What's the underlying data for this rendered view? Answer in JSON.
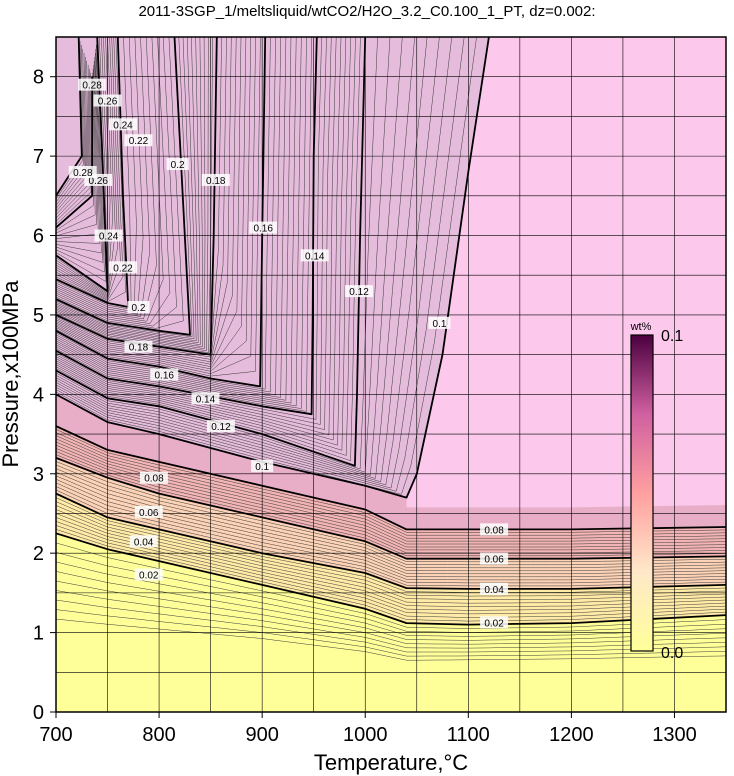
{
  "chart_data": {
    "type": "heatmap",
    "title": "2011-3SGP_1/meltsliquid/wtCO2/H2O_3.2_C0.100_1_PT, dz=0.002:",
    "xlabel": "Temperature,°C",
    "ylabel": "Pressure,x100MPa",
    "xlim": [
      700,
      1350
    ],
    "ylim": [
      0,
      8.5
    ],
    "x_ticks": [
      700,
      800,
      900,
      1000,
      1100,
      1200,
      1300
    ],
    "y_ticks": [
      0,
      1,
      2,
      3,
      4,
      5,
      6,
      7,
      8
    ],
    "grid_x": [
      700,
      750,
      800,
      850,
      900,
      950,
      1000,
      1050,
      1100,
      1150,
      1200,
      1250,
      1300,
      1350
    ],
    "grid_y": [
      0,
      0.5,
      1,
      1.5,
      2,
      2.5,
      3,
      3.5,
      4,
      4.5,
      5,
      5.5,
      6,
      6.5,
      7,
      7.5,
      8,
      8.5
    ],
    "contour_interval": 0.002,
    "major_contours": [
      {
        "level": 0.02,
        "points": [
          [
            700,
            2.25
          ],
          [
            750,
            2.05
          ],
          [
            800,
            1.9
          ],
          [
            900,
            1.6
          ],
          [
            1000,
            1.3
          ],
          [
            1040,
            1.12
          ],
          [
            1100,
            1.1
          ],
          [
            1200,
            1.12
          ],
          [
            1350,
            1.22
          ]
        ]
      },
      {
        "level": 0.04,
        "points": [
          [
            700,
            2.75
          ],
          [
            750,
            2.45
          ],
          [
            800,
            2.3
          ],
          [
            900,
            2.0
          ],
          [
            1000,
            1.75
          ],
          [
            1040,
            1.56
          ],
          [
            1100,
            1.55
          ],
          [
            1200,
            1.55
          ],
          [
            1350,
            1.6
          ]
        ]
      },
      {
        "level": 0.06,
        "points": [
          [
            700,
            3.2
          ],
          [
            750,
            2.95
          ],
          [
            800,
            2.75
          ],
          [
            900,
            2.45
          ],
          [
            1000,
            2.15
          ],
          [
            1040,
            1.93
          ],
          [
            1100,
            1.93
          ],
          [
            1200,
            1.93
          ],
          [
            1350,
            1.96
          ]
        ]
      },
      {
        "level": 0.08,
        "points": [
          [
            700,
            3.6
          ],
          [
            750,
            3.3
          ],
          [
            800,
            3.15
          ],
          [
            900,
            2.85
          ],
          [
            1000,
            2.55
          ],
          [
            1040,
            2.3
          ],
          [
            1100,
            2.3
          ],
          [
            1200,
            2.3
          ],
          [
            1350,
            2.33
          ]
        ]
      },
      {
        "level": 0.1,
        "points": [
          [
            700,
            4.0
          ],
          [
            750,
            3.65
          ],
          [
            800,
            3.5
          ],
          [
            900,
            3.15
          ],
          [
            1000,
            2.85
          ],
          [
            1040,
            2.7
          ],
          [
            1050,
            3.0
          ],
          [
            1075,
            4.5
          ],
          [
            1100,
            6.8
          ],
          [
            1120,
            8.5
          ]
        ]
      },
      {
        "level": 0.12,
        "points": [
          [
            700,
            4.3
          ],
          [
            750,
            3.95
          ],
          [
            800,
            3.85
          ],
          [
            900,
            3.5
          ],
          [
            990,
            3.1
          ],
          [
            992,
            4.0
          ],
          [
            995,
            6.0
          ],
          [
            1000,
            8.5
          ]
        ]
      },
      {
        "level": 0.14,
        "points": [
          [
            700,
            4.55
          ],
          [
            750,
            4.2
          ],
          [
            800,
            4.1
          ],
          [
            900,
            3.85
          ],
          [
            948,
            3.75
          ],
          [
            949,
            5.0
          ],
          [
            950,
            7.0
          ],
          [
            953,
            8.5
          ]
        ]
      },
      {
        "level": 0.16,
        "points": [
          [
            700,
            4.8
          ],
          [
            750,
            4.45
          ],
          [
            800,
            4.35
          ],
          [
            850,
            4.2
          ],
          [
            898,
            4.1
          ],
          [
            900,
            6.0
          ],
          [
            903,
            8.5
          ]
        ]
      },
      {
        "level": 0.18,
        "points": [
          [
            700,
            5.0
          ],
          [
            750,
            4.7
          ],
          [
            800,
            4.6
          ],
          [
            850,
            4.5
          ],
          [
            853,
            6.0
          ],
          [
            856,
            8.5
          ]
        ]
      },
      {
        "level": 0.2,
        "points": [
          [
            700,
            5.2
          ],
          [
            750,
            4.9
          ],
          [
            800,
            4.8
          ],
          [
            830,
            4.75
          ],
          [
            825,
            6.0
          ],
          [
            815,
            8.5
          ]
        ]
      },
      {
        "level": 0.22,
        "points": [
          [
            700,
            5.45
          ],
          [
            750,
            5.15
          ],
          [
            770,
            5.1
          ],
          [
            765,
            6.5
          ],
          [
            760,
            8.5
          ]
        ]
      },
      {
        "level": 0.24,
        "points": [
          [
            700,
            5.75
          ],
          [
            750,
            5.3
          ],
          [
            745,
            7.0
          ],
          [
            740,
            8.5
          ]
        ]
      },
      {
        "level": 0.26,
        "points": [
          [
            700,
            6.1
          ],
          [
            735,
            6.5
          ],
          [
            735,
            8.0
          ]
        ]
      },
      {
        "level": 0.28,
        "points": [
          [
            700,
            6.5
          ],
          [
            725,
            7.0
          ],
          [
            722,
            8.5
          ]
        ]
      }
    ],
    "contour_labels": [
      {
        "text": "0.02",
        "at": [
          790,
          1.73
        ]
      },
      {
        "text": "0.02",
        "at": [
          1125,
          1.13
        ]
      },
      {
        "text": "0.04",
        "at": [
          785,
          2.15
        ]
      },
      {
        "text": "0.04",
        "at": [
          1125,
          1.55
        ]
      },
      {
        "text": "0.06",
        "at": [
          790,
          2.52
        ]
      },
      {
        "text": "0.06",
        "at": [
          1125,
          1.93
        ]
      },
      {
        "text": "0.08",
        "at": [
          795,
          2.95
        ]
      },
      {
        "text": "0.08",
        "at": [
          1125,
          2.3
        ]
      },
      {
        "text": "0.1",
        "at": [
          900,
          3.1
        ]
      },
      {
        "text": "0.1",
        "at": [
          1072,
          4.9
        ]
      },
      {
        "text": "0.12",
        "at": [
          860,
          3.6
        ]
      },
      {
        "text": "0.12",
        "at": [
          994,
          5.3
        ]
      },
      {
        "text": "0.14",
        "at": [
          845,
          3.95
        ]
      },
      {
        "text": "0.14",
        "at": [
          951,
          5.75
        ]
      },
      {
        "text": "0.16",
        "at": [
          805,
          4.25
        ]
      },
      {
        "text": "0.16",
        "at": [
          901,
          6.1
        ]
      },
      {
        "text": "0.18",
        "at": [
          780,
          4.6
        ]
      },
      {
        "text": "0.18",
        "at": [
          855,
          6.7
        ]
      },
      {
        "text": "0.2",
        "at": [
          780,
          5.1
        ]
      },
      {
        "text": "0.2",
        "at": [
          818,
          6.9
        ]
      },
      {
        "text": "0.22",
        "at": [
          765,
          5.6
        ]
      },
      {
        "text": "0.22",
        "at": [
          780,
          7.2
        ]
      },
      {
        "text": "0.24",
        "at": [
          751,
          6.0
        ]
      },
      {
        "text": "0.24",
        "at": [
          765,
          7.4
        ]
      },
      {
        "text": "0.26",
        "at": [
          741,
          6.7
        ]
      },
      {
        "text": "0.26",
        "at": [
          750,
          7.7
        ]
      },
      {
        "text": "0.28",
        "at": [
          726,
          6.8
        ]
      },
      {
        "text": "0.28",
        "at": [
          735,
          7.9
        ]
      }
    ],
    "colorbar": {
      "unit": "wt%",
      "min_label": "0.0",
      "max_label": "0.1",
      "min": 0.0,
      "max": 0.1,
      "colors": [
        "#ffff99",
        "#ffe8c8",
        "#ff9fa0",
        "#d060a0",
        "#4b0040"
      ]
    },
    "colors": {
      "saturated_region": "#fcc8ec",
      "low_region": "#ffff9a"
    }
  }
}
